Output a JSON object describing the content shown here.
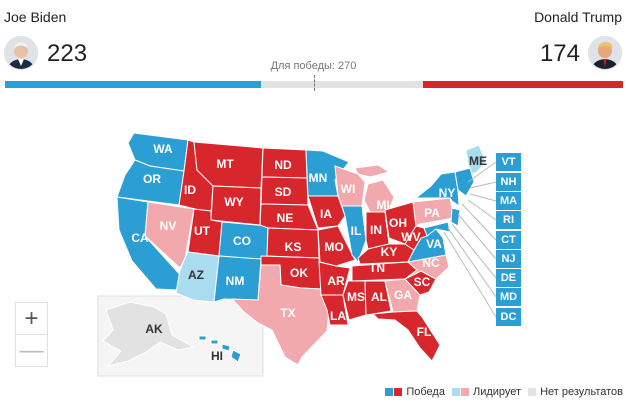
{
  "candidates": {
    "dem": {
      "name": "Joe Biden",
      "votes": "223",
      "votes_num": 223
    },
    "rep": {
      "name": "Donald Trump",
      "votes": "174",
      "votes_num": 174
    }
  },
  "win_threshold": {
    "label": "Для победы: 270",
    "value": 270,
    "total": 538
  },
  "colors": {
    "dem_win": "#2b9fd3",
    "rep_win": "#d8262d",
    "dem_lead": "#a9dcef",
    "rep_lead": "#f1a9ae",
    "no_result": "#e2e2e2"
  },
  "states": {
    "WA": {
      "label": "WA",
      "status": "dem_win"
    },
    "OR": {
      "label": "OR",
      "status": "dem_win"
    },
    "CA": {
      "label": "CA",
      "status": "dem_win"
    },
    "NV": {
      "label": "NV",
      "status": "rep_lead"
    },
    "ID": {
      "label": "ID",
      "status": "rep_win"
    },
    "MT": {
      "label": "MT",
      "status": "rep_win"
    },
    "WY": {
      "label": "WY",
      "status": "rep_win"
    },
    "UT": {
      "label": "UT",
      "status": "rep_win"
    },
    "AZ": {
      "label": "AZ",
      "status": "dem_lead"
    },
    "CO": {
      "label": "CO",
      "status": "dem_win"
    },
    "NM": {
      "label": "NM",
      "status": "dem_win"
    },
    "ND": {
      "label": "ND",
      "status": "rep_win"
    },
    "SD": {
      "label": "SD",
      "status": "rep_win"
    },
    "NE": {
      "label": "NE",
      "status": "rep_win"
    },
    "KS": {
      "label": "KS",
      "status": "rep_win"
    },
    "OK": {
      "label": "OK",
      "status": "rep_win"
    },
    "TX": {
      "label": "TX",
      "status": "rep_lead"
    },
    "MN": {
      "label": "MN",
      "status": "dem_win"
    },
    "IA": {
      "label": "IA",
      "status": "rep_win"
    },
    "MO": {
      "label": "MO",
      "status": "rep_win"
    },
    "AR": {
      "label": "AR",
      "status": "rep_win"
    },
    "LA": {
      "label": "LA",
      "status": "rep_win"
    },
    "WI": {
      "label": "WI",
      "status": "rep_lead"
    },
    "IL": {
      "label": "IL",
      "status": "dem_win"
    },
    "MI": {
      "label": "MI",
      "status": "rep_lead"
    },
    "IN": {
      "label": "IN",
      "status": "rep_win"
    },
    "OH": {
      "label": "OH",
      "status": "rep_win"
    },
    "KY": {
      "label": "KY",
      "status": "rep_win"
    },
    "TN": {
      "label": "TN",
      "status": "rep_win"
    },
    "MS": {
      "label": "MS",
      "status": "rep_win"
    },
    "AL": {
      "label": "AL",
      "status": "rep_win"
    },
    "GA": {
      "label": "GA",
      "status": "rep_lead"
    },
    "FL": {
      "label": "FL",
      "status": "rep_win"
    },
    "SC": {
      "label": "SC",
      "status": "rep_win"
    },
    "NC": {
      "label": "NC",
      "status": "rep_lead"
    },
    "VA": {
      "label": "VA",
      "status": "dem_win"
    },
    "WV": {
      "label": "WV",
      "status": "rep_win"
    },
    "PA": {
      "label": "PA",
      "status": "rep_lead"
    },
    "NY": {
      "label": "NY",
      "status": "dem_win"
    },
    "ME": {
      "label": "ME",
      "status": "dem_lead"
    },
    "AK": {
      "label": "AK",
      "status": "no_result"
    },
    "HI": {
      "label": "HI",
      "status": "dem_win"
    },
    "VT": {
      "label": "VT",
      "status": "dem_win"
    },
    "NH": {
      "label": "NH",
      "status": "dem_win"
    },
    "MA": {
      "label": "MA",
      "status": "dem_win"
    },
    "RI": {
      "label": "RI",
      "status": "dem_win"
    },
    "CT": {
      "label": "CT",
      "status": "dem_win"
    },
    "NJ": {
      "label": "NJ",
      "status": "dem_win"
    },
    "DE": {
      "label": "DE",
      "status": "dem_win"
    },
    "MD": {
      "label": "MD",
      "status": "dem_win"
    },
    "DC": {
      "label": "DC",
      "status": "dem_win"
    }
  },
  "legend": {
    "win": "Победа",
    "lead": "Лидирует",
    "none": "Нет результатов"
  },
  "zoom": {
    "in": "+",
    "out": "—"
  }
}
